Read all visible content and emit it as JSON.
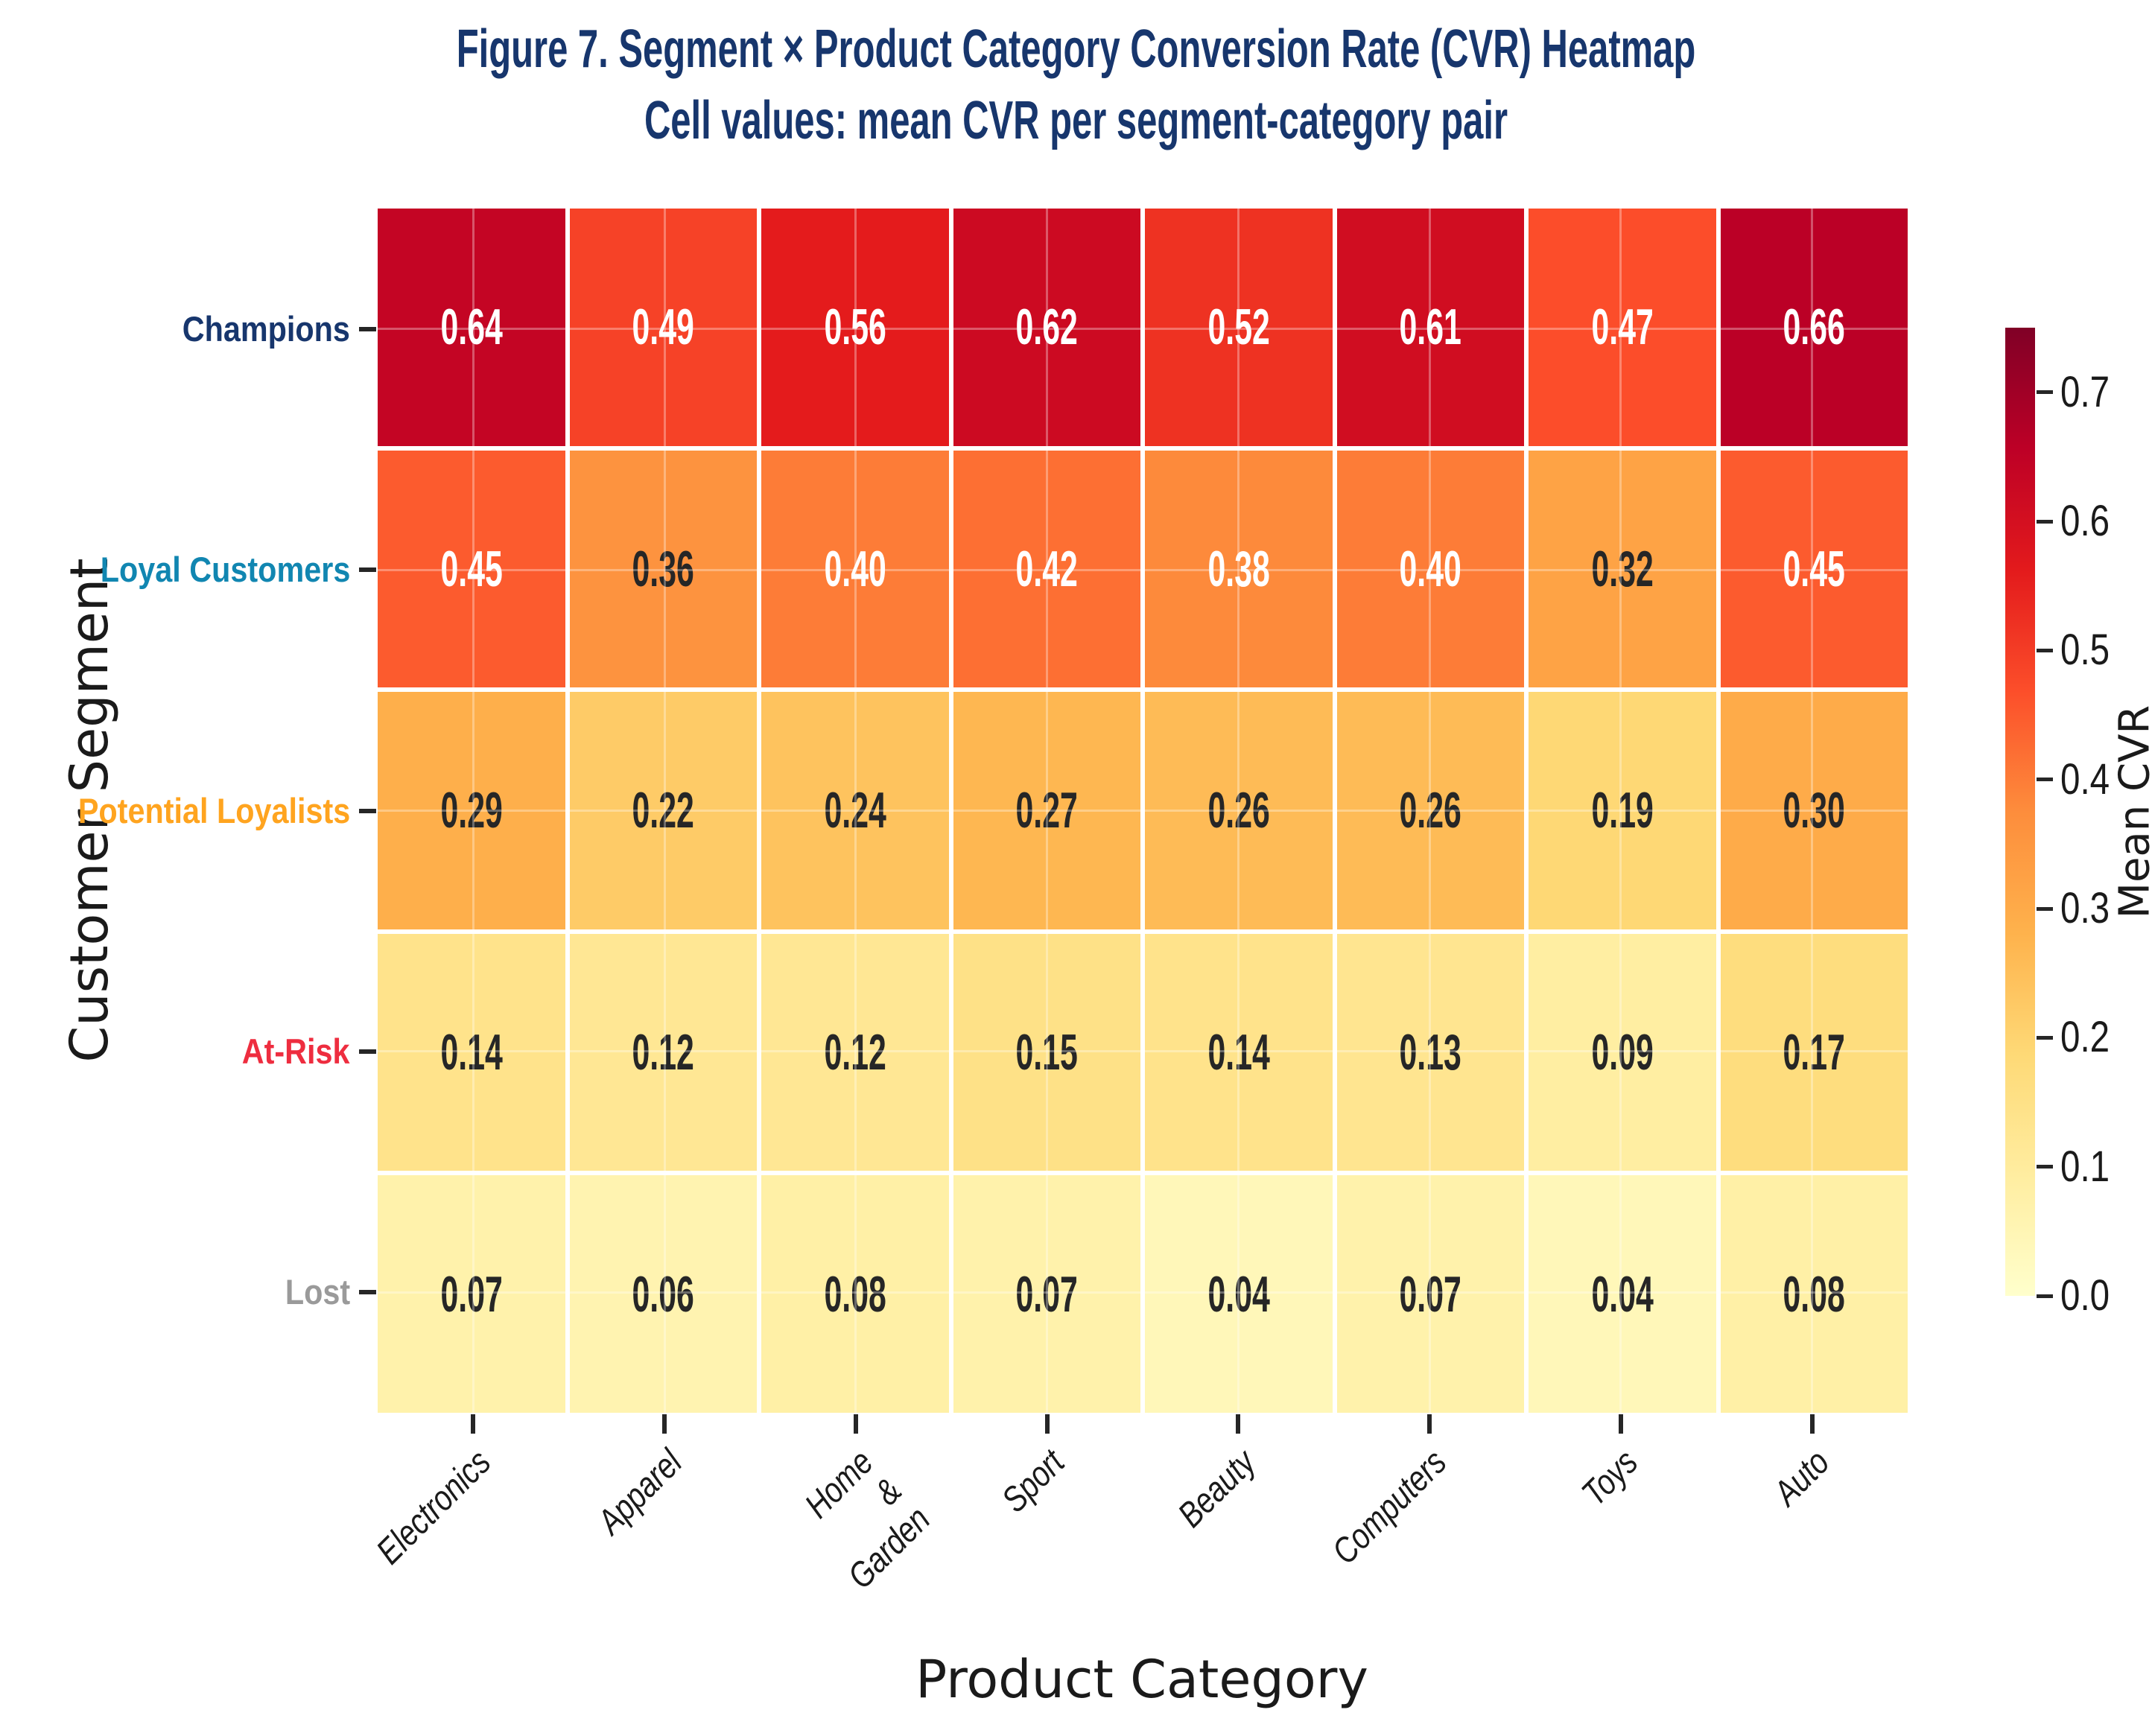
{
  "figure": {
    "title_line1": "Figure 7. Segment × Product Category Conversion Rate (CVR) Heatmap",
    "title_line2": "Cell values: mean CVR per segment-category pair",
    "title_color": "#17366d"
  },
  "chart_data": {
    "type": "heatmap",
    "title": "Figure 7. Segment × Product Category Conversion Rate (CVR) Heatmap",
    "subtitle": "Cell values: mean CVR per segment-category pair",
    "xlabel": "Product Category",
    "ylabel": "Customer Segment",
    "categories_x": [
      "Electronics",
      "Apparel",
      "Home &\nGarden",
      "Sport",
      "Beauty",
      "Computers",
      "Toys",
      "Auto"
    ],
    "categories_y": [
      {
        "label": "Champions",
        "color": "#17366d"
      },
      {
        "label": "Loyal Customers",
        "color": "#1186b1"
      },
      {
        "label": "Potential Loyalists",
        "color": "#ffa41f"
      },
      {
        "label": "At-Risk",
        "color": "#ee2d3f"
      },
      {
        "label": "Lost",
        "color": "#9a9a9a"
      }
    ],
    "values": [
      [
        0.64,
        0.49,
        0.56,
        0.62,
        0.52,
        0.61,
        0.47,
        0.66
      ],
      [
        0.45,
        0.36,
        0.4,
        0.42,
        0.38,
        0.4,
        0.32,
        0.45
      ],
      [
        0.29,
        0.22,
        0.24,
        0.27,
        0.26,
        0.26,
        0.19,
        0.3
      ],
      [
        0.14,
        0.12,
        0.12,
        0.15,
        0.14,
        0.13,
        0.09,
        0.17
      ],
      [
        0.07,
        0.06,
        0.08,
        0.07,
        0.04,
        0.07,
        0.04,
        0.08
      ]
    ],
    "value_format_decimals": 2,
    "grid": true,
    "colorbar": {
      "label": "Mean CVR",
      "ticks": [
        "0.0",
        "0.1",
        "0.2",
        "0.3",
        "0.4",
        "0.5",
        "0.6",
        "0.7"
      ],
      "vmin": 0.0,
      "vmax": 0.75,
      "colormap": "YlOrRd",
      "colormap_anchors": [
        "#ffffcc",
        "#ffeda0",
        "#fed976",
        "#feb24c",
        "#fd8d3c",
        "#fc4e2a",
        "#e31a1c",
        "#bd0026",
        "#800026"
      ],
      "position": "right"
    },
    "annotation_text_colors": {
      "light": "#ffffff",
      "dark": "#262626"
    }
  }
}
